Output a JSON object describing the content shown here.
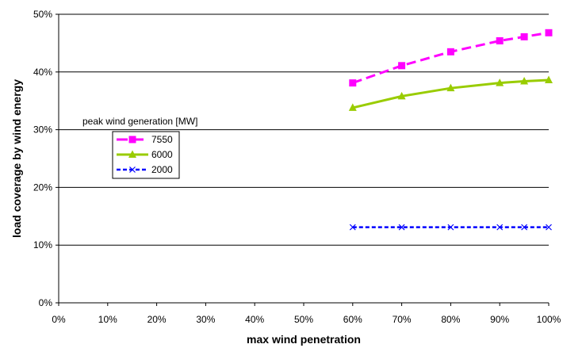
{
  "chart_data": {
    "type": "line",
    "xlabel": "max wind penetration",
    "ylabel": "load coverage by wind energy",
    "xlim": [
      0,
      100
    ],
    "ylim": [
      0,
      50
    ],
    "x_unit": "%",
    "y_unit": "%",
    "x_ticks": [
      "0%",
      "10%",
      "20%",
      "30%",
      "40%",
      "50%",
      "60%",
      "70%",
      "80%",
      "90%",
      "100%"
    ],
    "y_ticks": [
      "0%",
      "10%",
      "20%",
      "30%",
      "40%",
      "50%"
    ],
    "grid": "horizontal",
    "legend": {
      "title": "peak wind generation [MW]",
      "placement": "center-left"
    },
    "x": [
      60,
      70,
      80,
      90,
      95,
      100
    ],
    "series": [
      {
        "name": "7550",
        "color": "#ff00ff",
        "line_style": "dashed",
        "marker": "square",
        "values": [
          38.1,
          41.1,
          43.5,
          45.4,
          46.1,
          46.8
        ]
      },
      {
        "name": "6000",
        "color": "#99cc00",
        "line_style": "solid",
        "marker": "triangle",
        "values": [
          33.8,
          35.8,
          37.2,
          38.1,
          38.4,
          38.6
        ]
      },
      {
        "name": "2000",
        "color": "#0000ff",
        "line_style": "dotted",
        "marker": "x",
        "values": [
          13.1,
          13.1,
          13.1,
          13.1,
          13.1,
          13.1
        ]
      }
    ]
  }
}
